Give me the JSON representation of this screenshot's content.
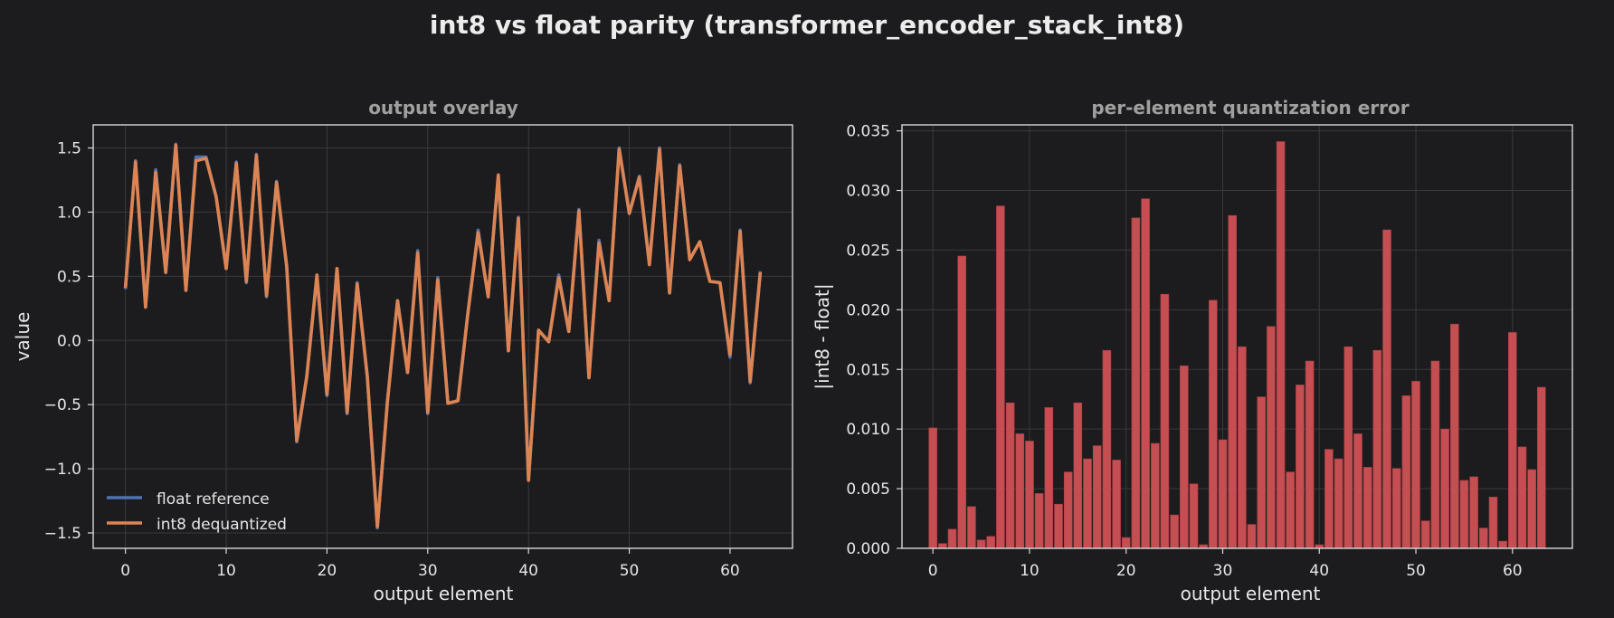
{
  "figure": {
    "suptitle": "int8 vs float parity  (transformer_encoder_stack_int8)",
    "background": "#1c1c1e"
  },
  "chart_data": [
    {
      "type": "line",
      "title": "output overlay",
      "xlabel": "output element",
      "ylabel": "value",
      "xlim": [
        -3.2,
        66.2
      ],
      "ylim": [
        -1.62,
        1.68
      ],
      "xticks": [
        0,
        10,
        20,
        30,
        40,
        50,
        60
      ],
      "yticks": [
        -1.5,
        -1.0,
        -0.5,
        0.0,
        0.5,
        1.0,
        1.5
      ],
      "ytick_labels": [
        "−1.5",
        "−1.0",
        "−0.5",
        "0.0",
        "0.5",
        "1.0",
        "1.5"
      ],
      "grid": true,
      "legend_position": "lower-left",
      "series": [
        {
          "name": "float reference",
          "color": "#4c72b0",
          "values": [
            0.4,
            1.4,
            0.26,
            1.33,
            0.53,
            1.53,
            0.39,
            1.43,
            1.43,
            1.12,
            0.56,
            1.39,
            0.45,
            1.45,
            0.34,
            1.24,
            0.57,
            -0.79,
            -0.28,
            0.5,
            -0.43,
            0.56,
            -0.57,
            0.45,
            -0.28,
            -1.46,
            -0.48,
            0.31,
            -0.25,
            0.7,
            -0.57,
            0.49,
            -0.49,
            -0.47,
            0.22,
            0.86,
            0.34,
            1.28,
            -0.08,
            0.96,
            -1.09,
            0.08,
            -0.01,
            0.51,
            0.07,
            1.02,
            -0.29,
            0.78,
            0.31,
            1.5,
            0.99,
            1.28,
            0.6,
            1.5,
            0.37,
            1.37,
            0.63,
            0.77,
            0.46,
            0.45,
            -0.13,
            0.86,
            -0.33,
            0.54
          ]
        },
        {
          "name": "int8 dequantized",
          "color": "#dd8452",
          "values": [
            0.41,
            1.39,
            0.26,
            1.31,
            0.53,
            1.52,
            0.39,
            1.4,
            1.42,
            1.12,
            0.56,
            1.38,
            0.46,
            1.44,
            0.35,
            1.23,
            0.58,
            -0.78,
            -0.28,
            0.51,
            -0.42,
            0.56,
            -0.56,
            0.44,
            -0.28,
            -1.45,
            -0.48,
            0.31,
            -0.25,
            0.68,
            -0.56,
            0.47,
            -0.49,
            -0.47,
            0.22,
            0.84,
            0.34,
            1.29,
            -0.08,
            0.95,
            -1.09,
            0.08,
            -0.01,
            0.49,
            0.07,
            1.01,
            -0.29,
            0.76,
            0.31,
            1.49,
            0.99,
            1.27,
            0.59,
            1.49,
            0.37,
            1.36,
            0.63,
            0.77,
            0.46,
            0.45,
            -0.11,
            0.85,
            -0.32,
            0.53
          ]
        }
      ]
    },
    {
      "type": "bar",
      "title": "per-element quantization error",
      "xlabel": "output element",
      "ylabel": "|int8 - float|",
      "xlim": [
        -3.2,
        66.2
      ],
      "ylim": [
        0,
        0.0355
      ],
      "xticks": [
        0,
        10,
        20,
        30,
        40,
        50,
        60
      ],
      "yticks": [
        0.0,
        0.005,
        0.01,
        0.015,
        0.02,
        0.025,
        0.03,
        0.035
      ],
      "ytick_labels": [
        "0.000",
        "0.005",
        "0.010",
        "0.015",
        "0.020",
        "0.025",
        "0.030",
        "0.035"
      ],
      "grid": true,
      "color": "#c44e52",
      "values": [
        0.0101,
        0.0004,
        0.0016,
        0.0245,
        0.0035,
        0.0007,
        0.001,
        0.0287,
        0.0122,
        0.0096,
        0.009,
        0.0046,
        0.0118,
        0.0037,
        0.0064,
        0.0122,
        0.0075,
        0.0086,
        0.0166,
        0.0074,
        0.0009,
        0.0277,
        0.0293,
        0.0088,
        0.0213,
        0.0028,
        0.0153,
        0.0054,
        0.0003,
        0.0208,
        0.0091,
        0.0279,
        0.0169,
        0.002,
        0.0127,
        0.0186,
        0.0341,
        0.0064,
        0.0137,
        0.0157,
        0.0003,
        0.0083,
        0.0075,
        0.0169,
        0.0096,
        0.0068,
        0.0166,
        0.0267,
        0.0067,
        0.0128,
        0.014,
        0.0023,
        0.0157,
        0.01,
        0.0188,
        0.0057,
        0.006,
        0.0017,
        0.0043,
        0.0006,
        0.0181,
        0.0085,
        0.0066,
        0.0135
      ]
    }
  ]
}
